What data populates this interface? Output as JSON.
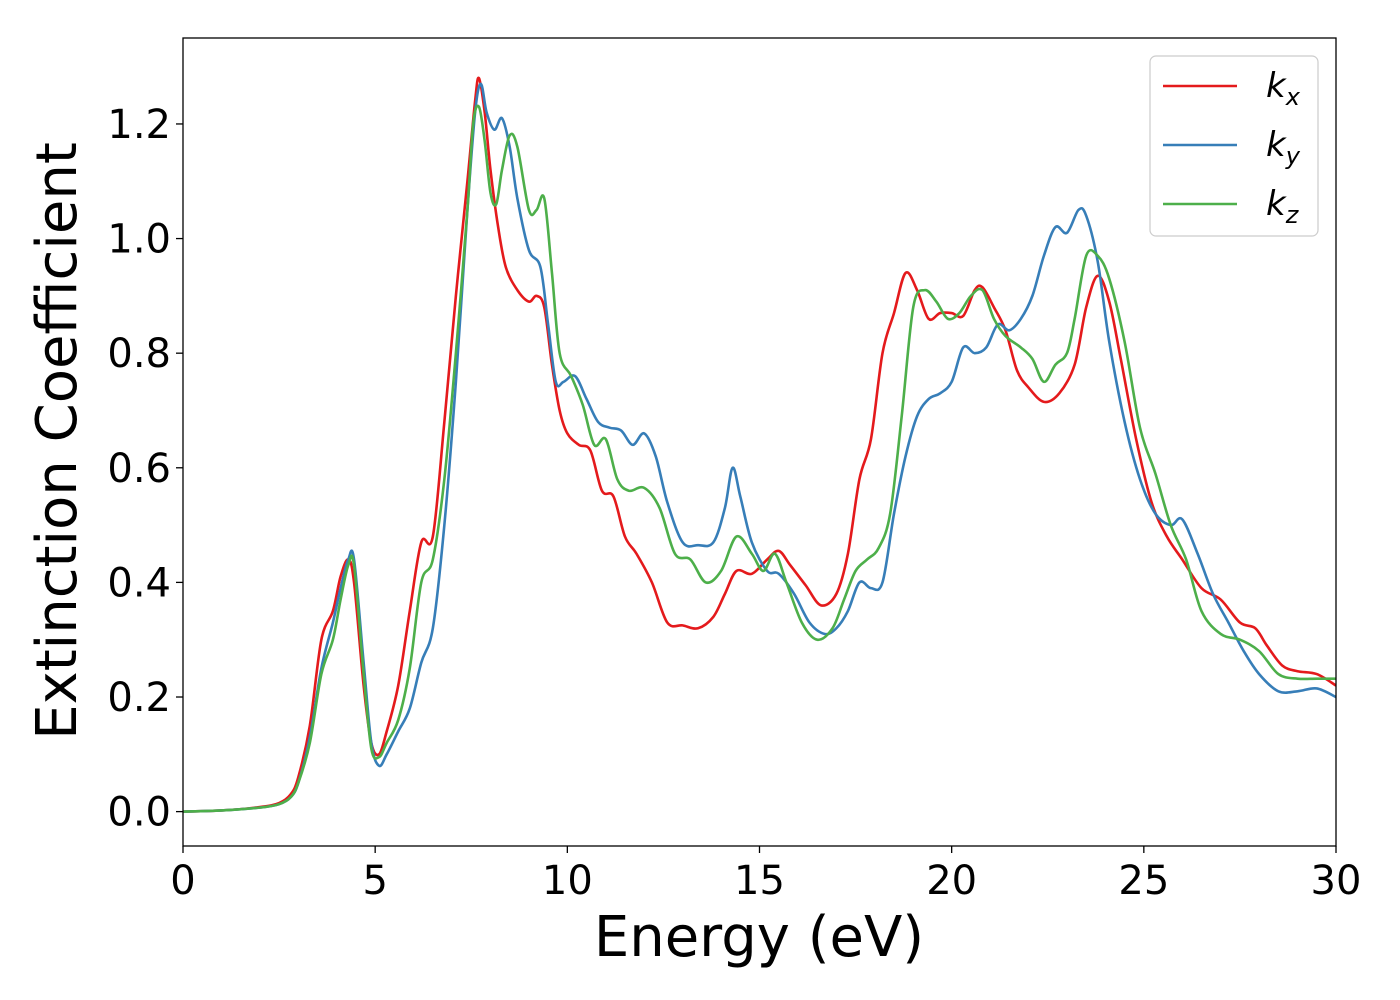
{
  "chart_data": {
    "type": "line",
    "xlabel": "Energy (eV)",
    "ylabel": "Extinction Coefficient",
    "xlim": [
      0,
      30
    ],
    "ylim": [
      -0.06,
      1.35
    ],
    "xticks": [
      0,
      5,
      10,
      15,
      20,
      25,
      30
    ],
    "xtick_labels": [
      "0",
      "5",
      "10",
      "15",
      "20",
      "25",
      "30"
    ],
    "yticks": [
      0.0,
      0.2,
      0.4,
      0.6,
      0.8,
      1.0,
      1.2
    ],
    "ytick_labels": [
      "0.0",
      "0.2",
      "0.4",
      "0.6",
      "0.8",
      "1.0",
      "1.2"
    ],
    "grid": false,
    "legend_position": "top-right",
    "series": [
      {
        "name": "k_x",
        "label_base": "k",
        "label_sub": "x",
        "color": "#e41a1c",
        "x": [
          0,
          1,
          2,
          2.5,
          2.8,
          3.0,
          3.3,
          3.6,
          3.9,
          4.1,
          4.3,
          4.45,
          4.7,
          4.9,
          5.1,
          5.3,
          5.6,
          5.9,
          6.2,
          6.5,
          6.8,
          7.1,
          7.4,
          7.6,
          7.7,
          7.85,
          8.0,
          8.2,
          8.4,
          8.7,
          9.0,
          9.2,
          9.4,
          9.6,
          9.8,
          10.0,
          10.3,
          10.6,
          10.9,
          11.2,
          11.5,
          11.8,
          12.2,
          12.6,
          13.0,
          13.4,
          13.8,
          14.1,
          14.4,
          14.8,
          15.2,
          15.5,
          15.8,
          16.2,
          16.6,
          17.0,
          17.3,
          17.6,
          17.9,
          18.2,
          18.5,
          18.8,
          19.1,
          19.4,
          19.7,
          20.0,
          20.3,
          20.6,
          20.8,
          21.1,
          21.4,
          21.7,
          22.0,
          22.4,
          22.8,
          23.2,
          23.5,
          23.8,
          24.1,
          24.4,
          24.8,
          25.2,
          25.6,
          26.0,
          26.5,
          27.0,
          27.5,
          27.9,
          28.2,
          28.6,
          29.0,
          29.5,
          30.0
        ],
        "y": [
          0.0,
          0.002,
          0.008,
          0.015,
          0.03,
          0.06,
          0.15,
          0.3,
          0.35,
          0.41,
          0.44,
          0.4,
          0.22,
          0.12,
          0.1,
          0.14,
          0.22,
          0.35,
          0.47,
          0.48,
          0.68,
          0.9,
          1.1,
          1.24,
          1.28,
          1.22,
          1.12,
          1.02,
          0.95,
          0.91,
          0.89,
          0.9,
          0.88,
          0.78,
          0.7,
          0.66,
          0.64,
          0.63,
          0.56,
          0.55,
          0.48,
          0.45,
          0.4,
          0.33,
          0.325,
          0.32,
          0.34,
          0.38,
          0.42,
          0.415,
          0.44,
          0.455,
          0.43,
          0.395,
          0.36,
          0.38,
          0.45,
          0.58,
          0.65,
          0.8,
          0.87,
          0.94,
          0.91,
          0.86,
          0.87,
          0.87,
          0.865,
          0.91,
          0.915,
          0.88,
          0.84,
          0.77,
          0.74,
          0.715,
          0.73,
          0.78,
          0.88,
          0.935,
          0.89,
          0.79,
          0.65,
          0.54,
          0.48,
          0.44,
          0.39,
          0.37,
          0.33,
          0.32,
          0.29,
          0.255,
          0.245,
          0.24,
          0.22
        ]
      },
      {
        "name": "k_y",
        "label_base": "k",
        "label_sub": "y",
        "color": "#377eb8",
        "x": [
          0,
          1,
          2,
          2.5,
          2.8,
          3.0,
          3.3,
          3.6,
          3.9,
          4.1,
          4.3,
          4.45,
          4.7,
          4.9,
          5.1,
          5.3,
          5.6,
          5.9,
          6.2,
          6.5,
          6.8,
          7.1,
          7.4,
          7.6,
          7.75,
          7.9,
          8.1,
          8.3,
          8.5,
          8.7,
          9.0,
          9.3,
          9.5,
          9.7,
          9.9,
          10.2,
          10.5,
          10.8,
          11.1,
          11.4,
          11.7,
          12.0,
          12.3,
          12.6,
          13.0,
          13.4,
          13.8,
          14.1,
          14.3,
          14.5,
          14.8,
          15.2,
          15.5,
          15.9,
          16.3,
          16.7,
          17.0,
          17.3,
          17.6,
          17.9,
          18.2,
          18.5,
          18.8,
          19.1,
          19.4,
          19.7,
          20.0,
          20.3,
          20.6,
          20.9,
          21.2,
          21.5,
          21.8,
          22.1,
          22.4,
          22.7,
          23.0,
          23.3,
          23.5,
          23.8,
          24.1,
          24.5,
          24.9,
          25.3,
          25.7,
          26.0,
          26.4,
          26.8,
          27.2,
          27.6,
          28.0,
          28.5,
          29.0,
          29.5,
          30.0
        ],
        "y": [
          0.0,
          0.002,
          0.007,
          0.013,
          0.025,
          0.05,
          0.13,
          0.25,
          0.33,
          0.39,
          0.44,
          0.44,
          0.26,
          0.12,
          0.08,
          0.1,
          0.14,
          0.18,
          0.26,
          0.32,
          0.5,
          0.75,
          1.05,
          1.22,
          1.27,
          1.22,
          1.19,
          1.21,
          1.16,
          1.07,
          0.98,
          0.95,
          0.85,
          0.75,
          0.75,
          0.76,
          0.72,
          0.68,
          0.67,
          0.665,
          0.64,
          0.66,
          0.62,
          0.54,
          0.47,
          0.465,
          0.47,
          0.53,
          0.6,
          0.55,
          0.47,
          0.42,
          0.415,
          0.38,
          0.33,
          0.31,
          0.32,
          0.35,
          0.4,
          0.39,
          0.4,
          0.52,
          0.62,
          0.69,
          0.72,
          0.73,
          0.75,
          0.81,
          0.8,
          0.81,
          0.85,
          0.84,
          0.86,
          0.9,
          0.97,
          1.02,
          1.01,
          1.05,
          1.04,
          0.96,
          0.82,
          0.68,
          0.58,
          0.52,
          0.5,
          0.51,
          0.45,
          0.38,
          0.33,
          0.28,
          0.24,
          0.21,
          0.21,
          0.215,
          0.2
        ]
      },
      {
        "name": "k_z",
        "label_base": "k",
        "label_sub": "z",
        "color": "#4daf4a",
        "x": [
          0,
          1,
          2,
          2.5,
          2.8,
          3.0,
          3.3,
          3.6,
          3.9,
          4.1,
          4.3,
          4.45,
          4.7,
          4.9,
          5.1,
          5.3,
          5.6,
          5.9,
          6.2,
          6.5,
          6.8,
          7.1,
          7.4,
          7.55,
          7.7,
          7.85,
          8.0,
          8.15,
          8.3,
          8.5,
          8.7,
          9.0,
          9.2,
          9.4,
          9.6,
          9.8,
          10.1,
          10.4,
          10.7,
          11.0,
          11.3,
          11.6,
          12.0,
          12.4,
          12.8,
          13.2,
          13.6,
          14.0,
          14.4,
          14.8,
          15.1,
          15.4,
          15.7,
          16.1,
          16.5,
          16.9,
          17.2,
          17.5,
          17.8,
          18.1,
          18.4,
          18.7,
          19.0,
          19.3,
          19.6,
          19.9,
          20.2,
          20.5,
          20.8,
          21.1,
          21.4,
          21.8,
          22.1,
          22.4,
          22.7,
          23.0,
          23.2,
          23.5,
          23.8,
          24.1,
          24.5,
          24.9,
          25.3,
          25.7,
          26.1,
          26.5,
          27.0,
          27.5,
          28.0,
          28.5,
          29.0,
          29.5,
          30.0
        ],
        "y": [
          0.0,
          0.002,
          0.007,
          0.013,
          0.025,
          0.05,
          0.12,
          0.24,
          0.3,
          0.37,
          0.43,
          0.43,
          0.24,
          0.11,
          0.095,
          0.12,
          0.16,
          0.25,
          0.4,
          0.44,
          0.58,
          0.8,
          1.05,
          1.2,
          1.23,
          1.17,
          1.08,
          1.06,
          1.12,
          1.18,
          1.16,
          1.05,
          1.05,
          1.07,
          0.94,
          0.8,
          0.76,
          0.71,
          0.64,
          0.65,
          0.58,
          0.56,
          0.565,
          0.53,
          0.45,
          0.44,
          0.4,
          0.42,
          0.48,
          0.45,
          0.42,
          0.45,
          0.4,
          0.33,
          0.3,
          0.32,
          0.37,
          0.42,
          0.44,
          0.46,
          0.52,
          0.69,
          0.88,
          0.91,
          0.89,
          0.86,
          0.87,
          0.9,
          0.91,
          0.86,
          0.83,
          0.81,
          0.79,
          0.75,
          0.78,
          0.8,
          0.86,
          0.97,
          0.97,
          0.93,
          0.82,
          0.67,
          0.59,
          0.5,
          0.44,
          0.35,
          0.31,
          0.3,
          0.28,
          0.24,
          0.232,
          0.232,
          0.232
        ]
      }
    ]
  }
}
